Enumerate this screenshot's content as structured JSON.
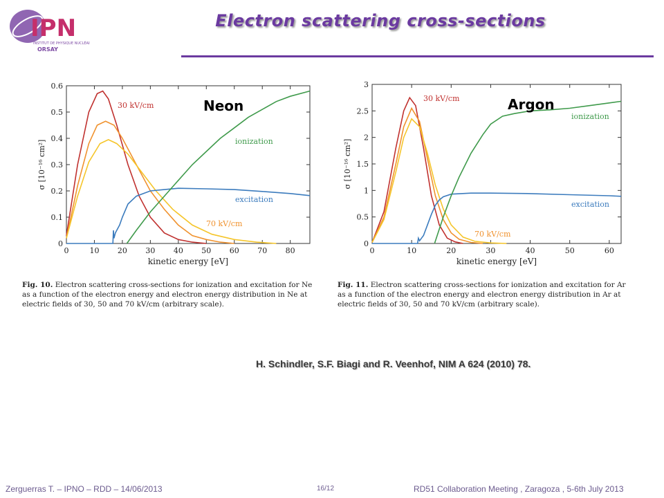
{
  "header": {
    "title": "Electron scattering cross-sections",
    "logo_text": "IPN",
    "logo_subtitle": "INSTITUT DE PHYSIQUE NUCLÉAIRE",
    "logo_place": "ORSAY"
  },
  "colors": {
    "title": "#6b3aa0",
    "red": "#c0312f",
    "orange": "#f0922e",
    "yellow": "#f5c52a",
    "green": "#3f9a4b",
    "blue": "#3b7bbd"
  },
  "reference": "H. Schindler, S.F. Biagi and R. Veenhof, NIM A  624 (2010) 78.",
  "footer": {
    "left": "Zerguerras  T. – IPNO – RDD – 14/06/2013",
    "center": "16/12",
    "right": "RD51 Collaboration Meeting , Zaragoza , 5-6th July 2013"
  },
  "captions": [
    {
      "fig": "Fig. 10.",
      "text": "Electron scattering cross-sections for ionization and excitation for Ne as a function of the electron energy and electron energy distribution in Ne at electric fields of 30, 50 and 70 kV/cm (arbitrary scale)."
    },
    {
      "fig": "Fig. 11.",
      "text": "Electron scattering cross-sections for ionization and excitation for Ar as a function of the electron energy and electron energy distribution in Ar at electric fields of 30, 50 and 70 kV/cm (arbitrary scale)."
    }
  ],
  "chart_data": [
    {
      "type": "line",
      "label": "Neon",
      "xlabel": "kinetic energy [eV]",
      "ylabel": "σ [10⁻¹⁶ cm²]",
      "xlim": [
        0,
        87
      ],
      "ylim": [
        0,
        0.6
      ],
      "xticks": [
        0,
        10,
        20,
        30,
        40,
        50,
        60,
        70,
        80
      ],
      "yticks": [
        0,
        0.1,
        0.2,
        0.3,
        0.4,
        0.5,
        0.6
      ],
      "annotations": [
        "30 kV/cm",
        "ionization",
        "excitation",
        "70 kV/cm"
      ],
      "series": [
        {
          "key": "red",
          "color": "#c0312f",
          "x": [
            0,
            4,
            8,
            11,
            13,
            15,
            18,
            22,
            26,
            30,
            35,
            40,
            45,
            50
          ],
          "y": [
            0.03,
            0.3,
            0.5,
            0.57,
            0.58,
            0.55,
            0.45,
            0.3,
            0.18,
            0.1,
            0.04,
            0.015,
            0.005,
            0
          ]
        },
        {
          "key": "orange",
          "color": "#f0922e",
          "x": [
            0,
            4,
            8,
            11,
            14,
            17,
            20,
            25,
            30,
            35,
            40,
            45,
            50,
            55,
            60
          ],
          "y": [
            0.02,
            0.22,
            0.38,
            0.45,
            0.465,
            0.45,
            0.4,
            0.3,
            0.2,
            0.13,
            0.07,
            0.03,
            0.015,
            0.005,
            0
          ]
        },
        {
          "key": "yellow",
          "color": "#f5c52a",
          "x": [
            0,
            4,
            8,
            12,
            15,
            18,
            22,
            27,
            32,
            38,
            45,
            52,
            60,
            68,
            75
          ],
          "y": [
            0.02,
            0.18,
            0.31,
            0.38,
            0.395,
            0.38,
            0.34,
            0.27,
            0.2,
            0.13,
            0.07,
            0.035,
            0.015,
            0.005,
            0
          ]
        },
        {
          "key": "blue",
          "color": "#3b7bbd",
          "x": [
            0,
            16.6,
            16.8,
            17,
            17.5,
            18,
            19,
            20,
            22,
            25,
            30,
            35,
            40,
            50,
            60,
            70,
            80,
            87
          ],
          "y": [
            0,
            0,
            0.05,
            0.02,
            0.04,
            0.05,
            0.07,
            0.1,
            0.15,
            0.18,
            0.2,
            0.205,
            0.21,
            0.208,
            0.205,
            0.198,
            0.19,
            0.182
          ]
        },
        {
          "key": "green",
          "color": "#3f9a4b",
          "x": [
            21.6,
            25,
            30,
            35,
            40,
            45,
            50,
            55,
            60,
            65,
            70,
            75,
            80,
            87
          ],
          "y": [
            0,
            0.05,
            0.12,
            0.18,
            0.24,
            0.3,
            0.35,
            0.4,
            0.44,
            0.48,
            0.51,
            0.54,
            0.56,
            0.58
          ]
        }
      ]
    },
    {
      "type": "line",
      "label": "Argon",
      "xlabel": "kinetic energy [eV]",
      "ylabel": "σ [10⁻¹⁶ cm²]",
      "xlim": [
        0,
        63
      ],
      "ylim": [
        0,
        3
      ],
      "xticks": [
        0,
        10,
        20,
        30,
        40,
        50,
        60
      ],
      "yticks": [
        0,
        0.5,
        1,
        1.5,
        2,
        2.5,
        3
      ],
      "annotations": [
        "30 kV/cm",
        "ionization",
        "excitation",
        "70 kV/cm"
      ],
      "series": [
        {
          "key": "red",
          "color": "#c0312f",
          "x": [
            0,
            3,
            6,
            8,
            9.5,
            11,
            13,
            15,
            17,
            19,
            21,
            23
          ],
          "y": [
            0.02,
            0.6,
            1.8,
            2.5,
            2.75,
            2.6,
            1.8,
            0.9,
            0.35,
            0.1,
            0.03,
            0
          ]
        },
        {
          "key": "orange",
          "color": "#f0922e",
          "x": [
            0,
            3,
            6,
            8,
            10,
            12,
            14,
            16,
            18,
            20,
            22,
            25,
            28
          ],
          "y": [
            0.02,
            0.5,
            1.5,
            2.2,
            2.55,
            2.3,
            1.6,
            0.9,
            0.45,
            0.2,
            0.08,
            0.02,
            0
          ]
        },
        {
          "key": "yellow",
          "color": "#f5c52a",
          "x": [
            0,
            3,
            6,
            8,
            10,
            12,
            14,
            16,
            18,
            20,
            23,
            26,
            30,
            34
          ],
          "y": [
            0.02,
            0.45,
            1.35,
            2.0,
            2.35,
            2.2,
            1.7,
            1.1,
            0.65,
            0.35,
            0.12,
            0.04,
            0.01,
            0
          ]
        },
        {
          "key": "blue",
          "color": "#3b7bbd",
          "x": [
            0,
            11.5,
            11.7,
            12,
            12.5,
            13,
            14,
            15,
            16,
            17,
            18,
            20,
            25,
            30,
            40,
            50,
            60,
            63
          ],
          "y": [
            0,
            0,
            0.1,
            0.05,
            0.1,
            0.15,
            0.35,
            0.55,
            0.72,
            0.82,
            0.88,
            0.93,
            0.95,
            0.95,
            0.94,
            0.92,
            0.9,
            0.89
          ]
        },
        {
          "key": "green",
          "color": "#3f9a4b",
          "x": [
            15.8,
            18,
            20,
            22,
            25,
            28,
            30,
            33,
            36,
            40,
            45,
            50,
            55,
            60,
            63
          ],
          "y": [
            0,
            0.5,
            0.9,
            1.25,
            1.7,
            2.05,
            2.25,
            2.4,
            2.45,
            2.5,
            2.52,
            2.55,
            2.6,
            2.65,
            2.68
          ]
        }
      ]
    }
  ]
}
